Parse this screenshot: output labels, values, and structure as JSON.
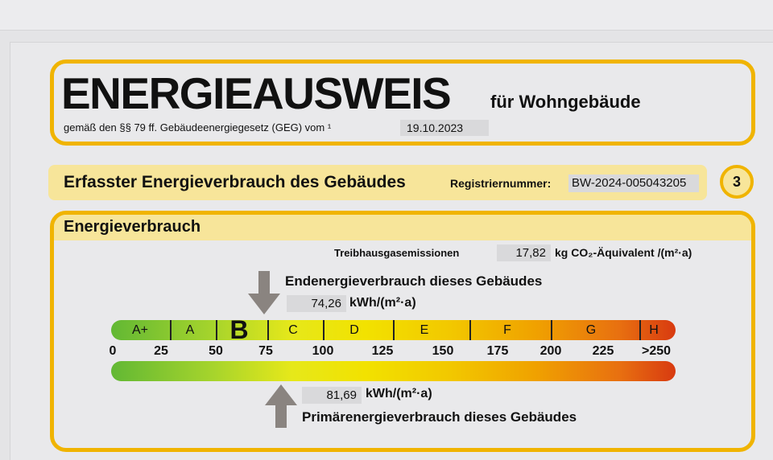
{
  "header": {
    "title": "ENERGIEAUSWEIS",
    "subtitle": "für Wohngebäude",
    "legal": "gemäß den §§ 79 ff. Gebäudeenergiegesetz (GEG) vom ¹",
    "date": "19.10.2023"
  },
  "section": {
    "title": "Erfasster Energieverbrauch des Gebäudes",
    "reg_label": "Registriernummer:",
    "reg_value": "BW-2024-005043205",
    "page_no": "3"
  },
  "energy": {
    "title": "Energieverbrauch",
    "ghg_label": "Treibhausgasemissionen",
    "ghg_value": "17,82",
    "ghg_unit": "kg CO₂-Äquivalent /(m²·a)",
    "final_label": "Endenergieverbrauch dieses Gebäudes",
    "final_value": "74,26",
    "final_unit": "kWh/(m²·a)",
    "primary_label": "Primärenergieverbrauch dieses Gebäudes",
    "primary_value": "81,69",
    "primary_unit": "kWh/(m²·a)",
    "current_class": "B",
    "classes": [
      "A+",
      "A",
      "B",
      "C",
      "D",
      "E",
      "F",
      "G",
      "H"
    ],
    "ticks": [
      "0",
      "25",
      "50",
      "75",
      "100",
      "125",
      "150",
      "175",
      "200",
      "225",
      ">250"
    ],
    "colors": {
      "frame": "#f0b400",
      "band": "#f7e59a",
      "scale_start": "#62b834",
      "scale_mid": "#f2e200",
      "scale_end": "#d83a10"
    }
  }
}
